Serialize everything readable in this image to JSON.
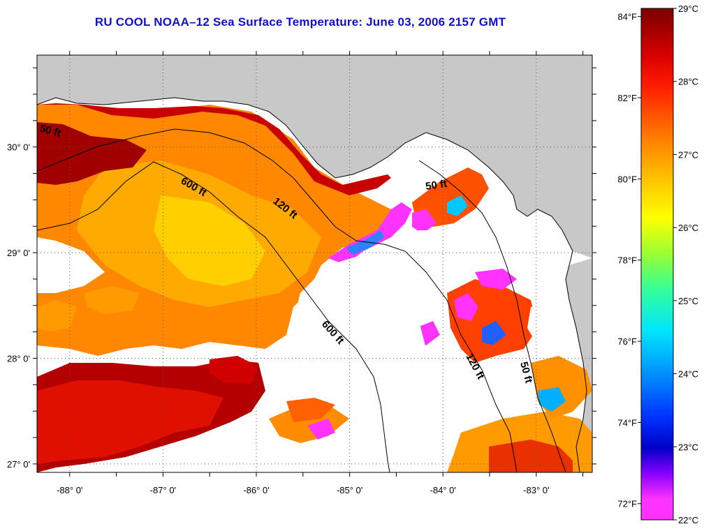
{
  "title": "RU COOL  NOAA–12  Sea Surface Temperature:  June 03, 2006 2157 GMT",
  "map": {
    "lon_range": [
      -88.35,
      -82.4
    ],
    "lat_range": [
      26.92,
      30.87
    ],
    "lon_ticks": [
      {
        "value": -88,
        "label": "-88° 0'"
      },
      {
        "value": -87,
        "label": "-87° 0'"
      },
      {
        "value": -86,
        "label": "-86° 0'"
      },
      {
        "value": -85,
        "label": "-85° 0'"
      },
      {
        "value": -84,
        "label": "-84° 0'"
      },
      {
        "value": -83,
        "label": "-83° 0'"
      }
    ],
    "lat_ticks": [
      {
        "value": 30,
        "label": "30° 0'"
      },
      {
        "value": 29,
        "label": "29° 0'"
      },
      {
        "value": 28,
        "label": "28° 0'"
      },
      {
        "value": 27,
        "label": "27° 0'"
      }
    ],
    "grid": true,
    "land_color": "#c8c8c8",
    "cloud_color": "#ffffff",
    "isobaths": [
      {
        "label": "50 ft"
      },
      {
        "label": "50 ft"
      },
      {
        "label": "50 ft"
      },
      {
        "label": "120 ft"
      },
      {
        "label": "120 ft"
      },
      {
        "label": "600 ft"
      },
      {
        "label": "600 ft"
      }
    ]
  },
  "colorbar": {
    "celsius": [
      "29°C",
      "28°C",
      "27°C",
      "26°C",
      "25°C",
      "24°C",
      "23°C",
      "22°C"
    ],
    "fahrenheit": [
      "84°F",
      "82°F",
      "80°F",
      "78°F",
      "76°F",
      "74°F",
      "72°F"
    ],
    "colors": [
      "#800000",
      "#ff1a00",
      "#ff9a00",
      "#ffff00",
      "#33ff66",
      "#00e6ff",
      "#0055ff",
      "#0000d0",
      "#ff33ff"
    ]
  }
}
